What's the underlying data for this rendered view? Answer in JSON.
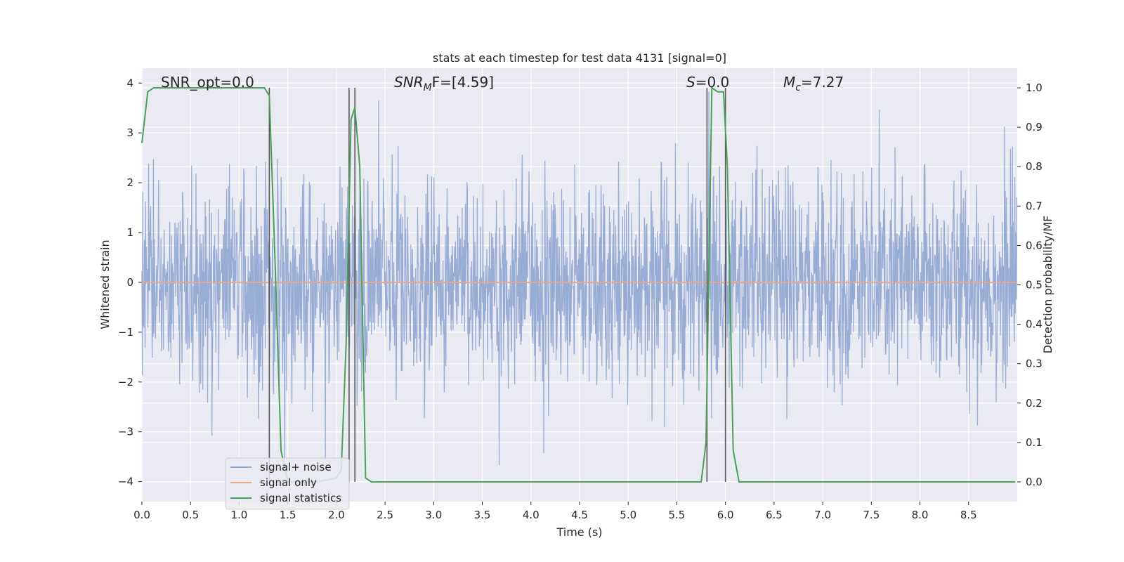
{
  "chart_data": {
    "type": "line",
    "title": "stats at each timestep for test data 4131 [signal=0]",
    "xlabel": "Time (s)",
    "ylabel_left": "Whitened strain",
    "ylabel_right": "Detection probability/MF",
    "xlim": [
      0.0,
      9.0
    ],
    "ylim_left": [
      -4.4,
      4.3
    ],
    "ylim_right": [
      -0.05,
      1.05
    ],
    "x_ticks": [
      0.0,
      0.5,
      1.0,
      1.5,
      2.0,
      2.5,
      3.0,
      3.5,
      4.0,
      4.5,
      5.0,
      5.5,
      6.0,
      6.5,
      7.0,
      7.5,
      8.0,
      8.5
    ],
    "x_tick_labels": [
      "0.0",
      "0.5",
      "1.0",
      "1.5",
      "2.0",
      "2.5",
      "3.0",
      "3.5",
      "4.0",
      "4.5",
      "5.0",
      "5.5",
      "6.0",
      "6.5",
      "7.0",
      "7.5",
      "8.0",
      "8.5"
    ],
    "y_left_ticks": [
      -4,
      -3,
      -2,
      -1,
      0,
      1,
      2,
      3,
      4
    ],
    "y_left_tick_labels": [
      "−4",
      "−3",
      "−2",
      "−1",
      "0",
      "1",
      "2",
      "3",
      "4"
    ],
    "y_right_ticks": [
      0.0,
      0.1,
      0.2,
      0.3,
      0.4,
      0.5,
      0.6,
      0.7,
      0.8,
      0.9,
      1.0
    ],
    "y_right_tick_labels": [
      "0.0",
      "0.1",
      "0.2",
      "0.3",
      "0.4",
      "0.5",
      "0.6",
      "0.7",
      "0.8",
      "0.9",
      "1.0"
    ],
    "grid": true,
    "legend_position": "lower-left",
    "annotations": {
      "snr_opt": "SNR_opt=0.0",
      "snr_mf_main": "SNR",
      "snr_mf_sub": "M",
      "snr_mf_rest": "F=[4.59]",
      "s_main": "S",
      "s_rest": "=0.0",
      "mc_main": "M",
      "mc_sub": "c",
      "mc_rest": "=7.27"
    },
    "series": [
      {
        "name": "signal+ noise",
        "axis": "left",
        "color": "#8fa6d1",
        "description_stats": {
          "mean": 0.0,
          "std": 1.0,
          "max": 3.95,
          "min": -3.85
        }
      },
      {
        "name": "signal only",
        "axis": "left",
        "color": "#e8a98a",
        "constant_value": 0.0
      },
      {
        "name": "signal statistics",
        "axis": "right",
        "color": "#4c9f5a",
        "x": [
          0.0,
          0.06,
          0.12,
          0.3,
          0.6,
          0.9,
          1.2,
          1.26,
          1.31,
          1.37,
          1.43,
          1.5,
          1.8,
          2.0,
          2.05,
          2.1,
          2.15,
          2.19,
          2.24,
          2.3,
          2.36,
          2.5,
          3.0,
          4.0,
          5.0,
          5.4,
          5.75,
          5.8,
          5.86,
          5.92,
          5.98,
          6.02,
          6.08,
          6.14,
          6.5,
          7.0,
          8.0,
          8.98
        ],
        "y": [
          0.86,
          0.99,
          1.0,
          1.0,
          1.0,
          1.0,
          1.0,
          1.0,
          0.98,
          0.55,
          0.08,
          0.0,
          0.0,
          0.01,
          0.03,
          0.35,
          0.92,
          0.95,
          0.8,
          0.01,
          0.0,
          0.0,
          0.0,
          0.0,
          0.0,
          0.0,
          0.0,
          0.1,
          1.0,
          0.99,
          0.99,
          0.8,
          0.08,
          0.0,
          0.0,
          0.0,
          0.0,
          0.0
        ]
      }
    ],
    "vertical_markers": {
      "color": "#555555",
      "x": [
        1.31,
        2.13,
        2.19,
        5.81,
        6.0
      ]
    }
  }
}
